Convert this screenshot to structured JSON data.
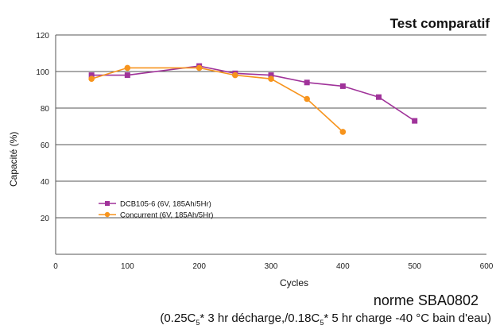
{
  "chart_data": {
    "type": "line",
    "title": "Test comparatif",
    "xlabel": "Cycles",
    "ylabel": "Capacité (%)",
    "xlim": [
      0,
      600
    ],
    "ylim": [
      0,
      120
    ],
    "xticks": [
      0,
      100,
      200,
      300,
      400,
      500,
      600
    ],
    "yticks": [
      20,
      40,
      60,
      80,
      100,
      120
    ],
    "grid": "horizontal",
    "legend_position": "lower-left",
    "series": [
      {
        "name": "DCB105-6 (6V, 185Ah/5Hr)",
        "color": "#a0339a",
        "marker": "square",
        "x": [
          50,
          100,
          200,
          250,
          300,
          350,
          400,
          450,
          500
        ],
        "y": [
          98,
          98,
          103,
          99,
          98,
          94,
          92,
          86,
          73
        ]
      },
      {
        "name": "Concurrent (6V, 185Ah/5Hr)",
        "color": "#f7941d",
        "marker": "circle",
        "x": [
          50,
          100,
          200,
          250,
          300,
          350,
          400
        ],
        "y": [
          96,
          102,
          102,
          98,
          96,
          85,
          67
        ]
      }
    ]
  },
  "footer": {
    "norme": "norme SBA0802",
    "c1_base": "(0.25C",
    "c1_sub": "5",
    "c1_rest": "* 3 hr décharge,/0.18C",
    "c2_sub": "5",
    "c2_rest": "* 5 hr charge -40 °C bain d'eau)"
  }
}
